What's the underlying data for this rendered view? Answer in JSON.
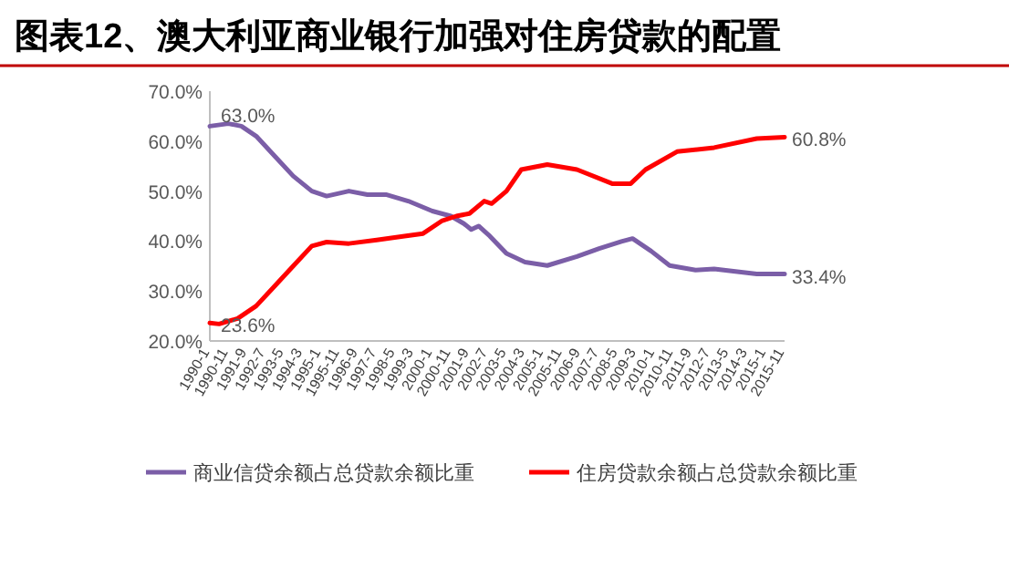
{
  "chart_data": {
    "type": "line",
    "title": "图表12、澳大利亚商业银行加强对住房贷款的配置",
    "xlim": [
      "1990-01",
      "2015-11"
    ],
    "xticks": [
      {
        "value": "1990-01",
        "label": "1990-1"
      },
      {
        "value": "1990-11",
        "label": "1990-11"
      },
      {
        "value": "1991-09",
        "label": "1991-9"
      },
      {
        "value": "1992-07",
        "label": "1992-7"
      },
      {
        "value": "1993-05",
        "label": "1993-5"
      },
      {
        "value": "1994-03",
        "label": "1994-3"
      },
      {
        "value": "1995-01",
        "label": "1995-1"
      },
      {
        "value": "1995-11",
        "label": "1995-11"
      },
      {
        "value": "1996-09",
        "label": "1996-9"
      },
      {
        "value": "1997-07",
        "label": "1997-7"
      },
      {
        "value": "1998-05",
        "label": "1998-5"
      },
      {
        "value": "1999-03",
        "label": "1999-3"
      },
      {
        "value": "2000-01",
        "label": "2000-1"
      },
      {
        "value": "2000-11",
        "label": "2000-11"
      },
      {
        "value": "2001-09",
        "label": "2001-9"
      },
      {
        "value": "2002-07",
        "label": "2002-7"
      },
      {
        "value": "2003-05",
        "label": "2003-5"
      },
      {
        "value": "2004-03",
        "label": "2004-3"
      },
      {
        "value": "2005-01",
        "label": "2005-1"
      },
      {
        "value": "2005-11",
        "label": "2005-11"
      },
      {
        "value": "2006-09",
        "label": "2006-9"
      },
      {
        "value": "2007-07",
        "label": "2007-7"
      },
      {
        "value": "2008-05",
        "label": "2008-5"
      },
      {
        "value": "2009-03",
        "label": "2009-3"
      },
      {
        "value": "2010-01",
        "label": "2010-1"
      },
      {
        "value": "2010-11",
        "label": "2010-11"
      },
      {
        "value": "2011-09",
        "label": "2011-9"
      },
      {
        "value": "2012-07",
        "label": "2012-7"
      },
      {
        "value": "2013-05",
        "label": "2013-5"
      },
      {
        "value": "2014-03",
        "label": "2014-3"
      },
      {
        "value": "2015-01",
        "label": "2015-1"
      },
      {
        "value": "2015-11",
        "label": "2015-11"
      }
    ],
    "ylim": [
      20,
      70
    ],
    "yticks": [
      {
        "value": 20,
        "label": "20.0%"
      },
      {
        "value": 30,
        "label": "30.0%"
      },
      {
        "value": 40,
        "label": "40.0%"
      },
      {
        "value": 50,
        "label": "50.0%"
      },
      {
        "value": 60,
        "label": "60.0%"
      },
      {
        "value": 70,
        "label": "70.0%"
      }
    ],
    "legend": "bottom",
    "series": [
      {
        "name": "商业信贷余额占总贷款余额比重",
        "color": "#7b5ea7",
        "x": [
          "1990-01",
          "1990-11",
          "1991-06",
          "1992-02",
          "1992-12",
          "1993-10",
          "1994-08",
          "1995-04",
          "1996-04",
          "1997-02",
          "1997-12",
          "1998-12",
          "2000-01",
          "2000-11",
          "2001-06",
          "2001-10",
          "2002-02",
          "2002-08",
          "2003-05",
          "2004-03",
          "2005-03",
          "2006-07",
          "2007-07",
          "2008-07",
          "2009-01",
          "2009-11",
          "2010-09",
          "2011-11",
          "2012-09",
          "2014-08",
          "2015-11"
        ],
        "values": [
          63.0,
          63.5,
          63.0,
          61,
          57,
          53,
          50,
          49,
          50,
          49.3,
          49.3,
          48,
          46,
          45,
          43.5,
          42.3,
          43,
          41,
          37.5,
          35.8,
          35.1,
          36.9,
          38.5,
          39.9,
          40.5,
          38,
          35.1,
          34.2,
          34.4,
          33.4,
          33.4
        ]
      },
      {
        "name": "住房贷款余额占总贷款余额比重",
        "color": "#ff0000",
        "x": [
          "1990-01",
          "1990-06",
          "1991-04",
          "1992-02",
          "1992-12",
          "1993-10",
          "1994-08",
          "1995-04",
          "1996-04",
          "1997-07",
          "1998-10",
          "1999-08",
          "2000-06",
          "2001-02",
          "2001-09",
          "2002-05",
          "2002-09",
          "2003-05",
          "2004-01",
          "2005-03",
          "2006-07",
          "2008-02",
          "2008-12",
          "2009-08",
          "2011-01",
          "2012-09",
          "2014-08",
          "2015-11"
        ],
        "values": [
          23.6,
          23.4,
          24.5,
          27,
          31,
          35,
          39,
          39.8,
          39.5,
          40.2,
          41,
          41.5,
          44,
          45,
          45.5,
          48,
          47.5,
          50,
          54.3,
          55.3,
          54.3,
          51.5,
          51.5,
          54.3,
          57.9,
          58.7,
          60.5,
          60.8
        ]
      }
    ],
    "annotations": [
      {
        "text": "63.0%",
        "x": "1990-01",
        "y": 63.0
      },
      {
        "text": "23.6%",
        "x": "1990-01",
        "y": 23.6
      },
      {
        "text": "60.8%",
        "x": "2015-11",
        "y": 60.8
      },
      {
        "text": "33.4%",
        "x": "2015-11",
        "y": 33.4
      }
    ]
  }
}
